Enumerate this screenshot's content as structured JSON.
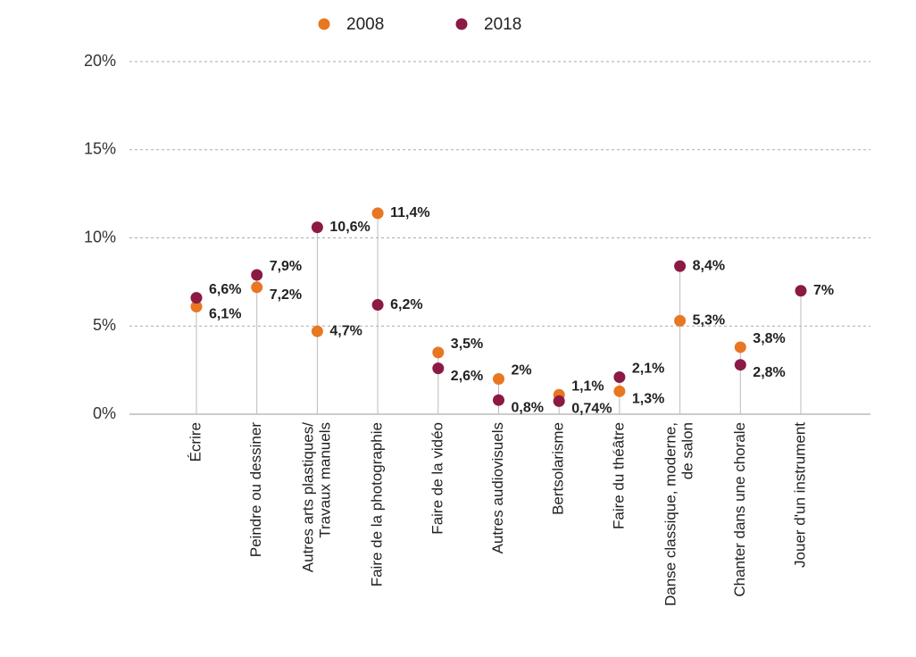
{
  "chart_data": {
    "type": "dot",
    "categories": [
      [
        "Écrire"
      ],
      [
        "Peindre ou dessiner"
      ],
      [
        "Autres arts plastiques/",
        "Travaux manuels"
      ],
      [
        "Faire de la photographie"
      ],
      [
        "Faire de la vidéo"
      ],
      [
        "Autres audiovisuels"
      ],
      [
        "Bertsolarisme"
      ],
      [
        "Faire du théâtre"
      ],
      [
        "Danse classique, moderne,",
        "de salon"
      ],
      [
        "Chanter dans une chorale"
      ],
      [
        "Jouer d'un instrument"
      ]
    ],
    "series": [
      {
        "name": "2008",
        "color": "#e87722",
        "values": [
          6.1,
          7.2,
          4.7,
          11.4,
          3.5,
          2,
          1.1,
          1.3,
          5.3,
          3.8,
          null
        ],
        "value_labels": [
          "6,1%",
          "7,2%",
          "4,7%",
          "11,4%",
          "3,5%",
          "2%",
          "1,1%",
          "1,3%",
          "5,3%",
          "3,8%",
          null
        ]
      },
      {
        "name": "2018",
        "color": "#8b1a45",
        "values": [
          6.6,
          7.9,
          10.6,
          6.2,
          2.6,
          0.8,
          0.74,
          2.1,
          8.4,
          2.8,
          7
        ],
        "value_labels": [
          "6,6%",
          "7,9%",
          "10,6%",
          "6,2%",
          "2,6%",
          "0,8%",
          "0,74%",
          "2,1%",
          "8,4%",
          "2,8%",
          "7%"
        ]
      }
    ],
    "ylim": [
      0,
      20
    ],
    "yticks": [
      {
        "value": 0,
        "label": "0%"
      },
      {
        "value": 5,
        "label": "5%"
      },
      {
        "value": 10,
        "label": "10%"
      },
      {
        "value": 15,
        "label": "15%"
      },
      {
        "value": 20,
        "label": "20%"
      }
    ],
    "grid": true,
    "legend": "top"
  }
}
